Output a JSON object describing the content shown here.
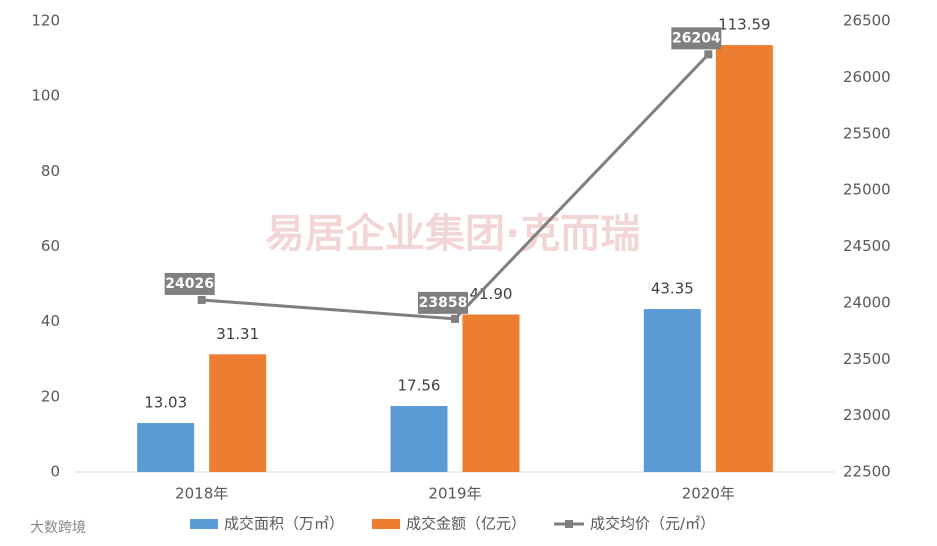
{
  "chart_data": {
    "type": "bar-line",
    "categories": [
      "2018年",
      "2019年",
      "2020年"
    ],
    "series": [
      {
        "name": "成交面积（万㎡）",
        "color": "#5b9bd5",
        "type": "bar",
        "values": [
          13.03,
          17.56,
          43.35
        ]
      },
      {
        "name": "成交金额（亿元）",
        "color": "#ed7d31",
        "type": "bar",
        "values": [
          31.31,
          41.9,
          113.59
        ],
        "value_labels": [
          "31.31",
          "41.90",
          "113.59"
        ]
      },
      {
        "name": "成交均价（元/㎡）",
        "color": "#7f7f7f",
        "type": "line",
        "axis": "y2",
        "values": [
          24026,
          23858,
          26204
        ]
      }
    ],
    "ylim": [
      0,
      120
    ],
    "yticks": [
      0,
      20,
      40,
      60,
      80,
      100,
      120
    ],
    "y2lim": [
      22500,
      26500
    ],
    "y2ticks": [
      22500,
      23000,
      23500,
      24000,
      24500,
      25000,
      25500,
      26000,
      26500
    ],
    "grid": false,
    "legend": "bottom",
    "watermark": "易居企业集团·克而瑞",
    "source_mark": "大数跨境"
  }
}
